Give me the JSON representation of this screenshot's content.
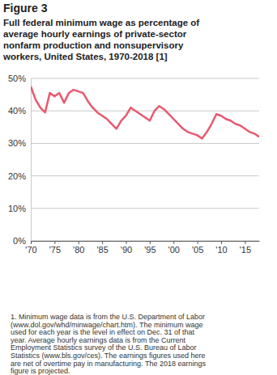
{
  "chart_data": {
    "type": "line",
    "title": "Figure 3",
    "subtitle": [
      "Full federal minimum wage as percentage of",
      "average hourly earnings of private-sector",
      "nonfarm production and nonsupervisory",
      "workers, United States, 1970-2018 [1]"
    ],
    "x": [
      1970,
      1971,
      1972,
      1973,
      1974,
      1975,
      1976,
      1977,
      1978,
      1979,
      1980,
      1981,
      1982,
      1983,
      1984,
      1985,
      1986,
      1987,
      1988,
      1989,
      1990,
      1991,
      1992,
      1993,
      1994,
      1995,
      1996,
      1997,
      1998,
      1999,
      2000,
      2001,
      2002,
      2003,
      2004,
      2005,
      2006,
      2007,
      2008,
      2009,
      2010,
      2011,
      2012,
      2013,
      2014,
      2015,
      2016,
      2017,
      2018
    ],
    "values": [
      47.5,
      43.5,
      41,
      39.5,
      45.5,
      44.5,
      45.5,
      42.5,
      45.5,
      46.5,
      46,
      45.5,
      43,
      41,
      39.5,
      38.5,
      37.5,
      36,
      34.5,
      37,
      38.5,
      41,
      40,
      39,
      38,
      37,
      40,
      41.5,
      40.5,
      39,
      37.5,
      36,
      34.5,
      33.5,
      33,
      32.5,
      31.5,
      33.5,
      36,
      39,
      38.5,
      37.5,
      37,
      36,
      35.5,
      34.5,
      33.5,
      33,
      32
    ],
    "color": "#e8596e",
    "xlim": [
      1970,
      2018
    ],
    "xticks": [
      {
        "value": 1970,
        "label": "'70"
      },
      {
        "value": 1975,
        "label": "'75"
      },
      {
        "value": 1980,
        "label": "'80"
      },
      {
        "value": 1985,
        "label": "'85"
      },
      {
        "value": 1990,
        "label": "'90"
      },
      {
        "value": 1995,
        "label": "'95"
      },
      {
        "value": 2000,
        "label": "'00"
      },
      {
        "value": 2005,
        "label": "'05"
      },
      {
        "value": 2010,
        "label": "'10"
      },
      {
        "value": 2015,
        "label": "'15"
      }
    ],
    "ylim": [
      0,
      50
    ],
    "yticks": [
      {
        "value": 0,
        "label": "0%"
      },
      {
        "value": 10,
        "label": "10%"
      },
      {
        "value": 20,
        "label": "20%"
      },
      {
        "value": 30,
        "label": "30%"
      },
      {
        "value": 40,
        "label": "40%"
      },
      {
        "value": 50,
        "label": "50%"
      }
    ],
    "grid": true,
    "annotations": [
      "1. Minimum wage data is from the U.S. Department of Labor",
      "(www.dol.gov/whd/minwage/chart.htm). The minimum wage",
      "used for each year is the level in effect on Dec. 31 of that",
      "year. Average hourly earnings data is from the Current",
      "Employment Statistics survey of the U.S. Bureau of Labor",
      "Statistics (www.bls.gov/ces). The earnings figures used here",
      "are net of overtime pay in manufacturing. The 2018 earnings",
      "figure is projected."
    ]
  }
}
